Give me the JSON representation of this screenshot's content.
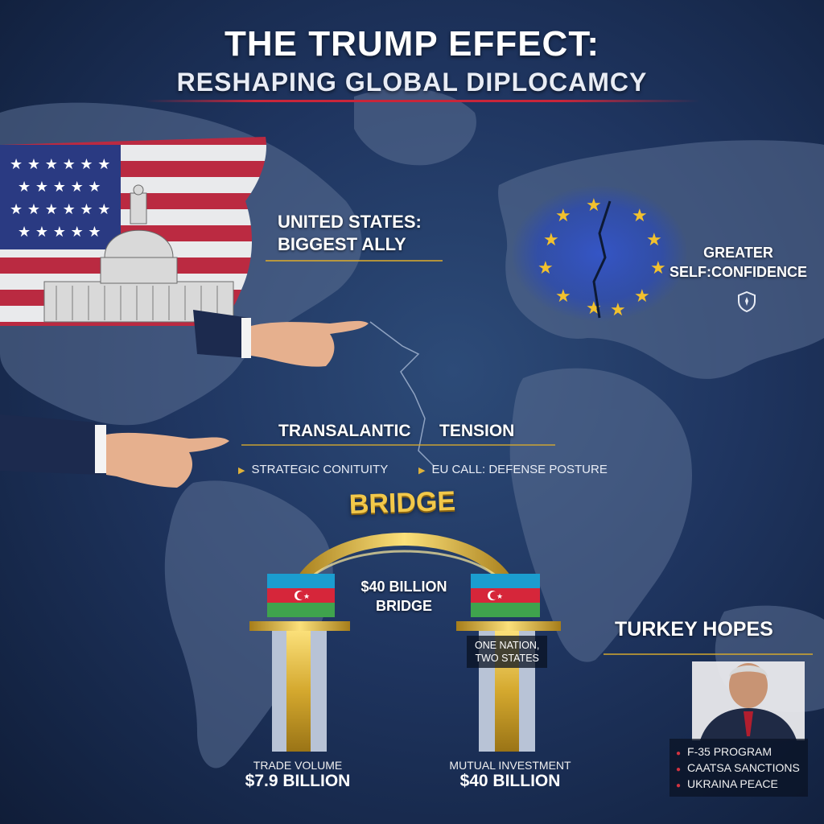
{
  "header": {
    "title": "THE TRUMP EFFECT:",
    "subtitle": "RESHAPING GLOBAL DIPLOCAMCY"
  },
  "us": {
    "label_line1": "UNITED STATES:",
    "label_line2": "BIGGEST ALLY"
  },
  "eu": {
    "label_line1": "GREATER",
    "label_line2": "SELF:CONFIDENCE",
    "icon": "shield-icon"
  },
  "tension": {
    "left_word": "TRANSALANTIC",
    "right_word": "TENSION",
    "bullets": [
      "STRATEGIC CONITUITY",
      "EU CALL: DEFENSE POSTURE"
    ]
  },
  "bridge": {
    "arch_label": "BRIDGE",
    "center_line1": "$40 BILLION",
    "center_line2": "BRIDGE",
    "caption_line1": "ONE NATION,",
    "caption_line2": "TWO STATES"
  },
  "stats": {
    "left": {
      "label": "TRADE VOLUME",
      "value": "$7.9 BILLION"
    },
    "right": {
      "label": "MUTUAL INVESTMENT",
      "value": "$40 BILLION"
    }
  },
  "turkey": {
    "heading": "TURKEY HOPES",
    "items": [
      "F-35 PROGRAM",
      "CAATSA SANCTIONS",
      "UKRAINA PEACE"
    ]
  },
  "colors": {
    "background": "#1f3560",
    "gold": "#d4a82e",
    "accent_red": "#c8263a",
    "eu_blue": "#2f4fb8"
  }
}
